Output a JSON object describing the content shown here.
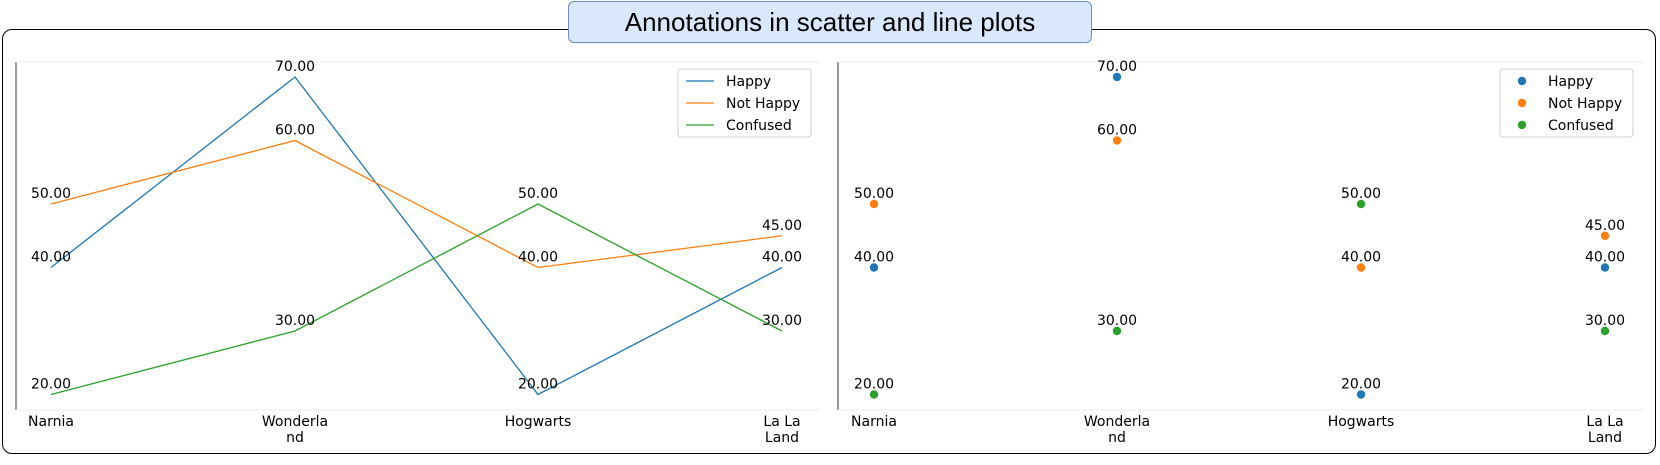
{
  "figure_title": "Annotations in scatter and line plots",
  "colors": {
    "Happy": "#1f77b4",
    "Not Happy": "#ff7f0e",
    "Confused": "#2ca02c"
  },
  "chart_data": [
    {
      "type": "line",
      "categories": [
        [
          "Narnia"
        ],
        [
          "Wonderla",
          "nd"
        ],
        [
          "Hogwarts"
        ],
        [
          "La La",
          "Land"
        ]
      ],
      "series": [
        {
          "name": "Happy",
          "values": [
            40,
            70,
            20,
            40
          ]
        },
        {
          "name": "Not Happy",
          "values": [
            50,
            60,
            40,
            45
          ]
        },
        {
          "name": "Confused",
          "values": [
            20,
            30,
            50,
            30
          ]
        }
      ],
      "annotation_format": "2 decimals",
      "legend": "top-right",
      "grid": false
    },
    {
      "type": "scatter",
      "categories": [
        [
          "Narnia"
        ],
        [
          "Wonderla",
          "nd"
        ],
        [
          "Hogwarts"
        ],
        [
          "La La",
          "Land"
        ]
      ],
      "series": [
        {
          "name": "Happy",
          "values": [
            40,
            70,
            20,
            40
          ]
        },
        {
          "name": "Not Happy",
          "values": [
            50,
            60,
            40,
            45
          ]
        },
        {
          "name": "Confused",
          "values": [
            20,
            30,
            50,
            30
          ]
        }
      ],
      "annotation_format": "2 decimals",
      "legend": "top-right",
      "grid": false
    }
  ]
}
